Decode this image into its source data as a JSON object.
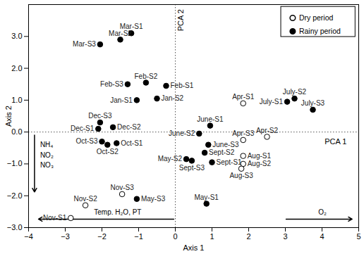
{
  "chart_data": {
    "type": "scatter",
    "x_label": "Axis 1",
    "y_label": "Axis 2",
    "xlim": [
      -4,
      5
    ],
    "ylim": [
      -3,
      4
    ],
    "xticks": [
      -4,
      -3,
      -2,
      -1,
      0,
      1,
      2,
      3,
      4,
      5
    ],
    "yticks": [
      -3,
      -2,
      -1,
      0,
      1,
      2,
      3
    ],
    "legend": "top-right",
    "annotations": [
      "PCA 1",
      "PCA 2",
      "NH₄",
      "NO₂",
      "NO₃",
      "Temp. H₂O, PT",
      "O₂"
    ],
    "series": [
      {
        "name": "Dry period",
        "color": "#000000",
        "marker": "open circle",
        "values": [
          {
            "label": "Apr-S1",
            "x": 1.85,
            "y": 0.9
          },
          {
            "label": "Apr-S2",
            "x": 2.5,
            "y": -0.15
          },
          {
            "label": "Apr-S3",
            "x": 1.85,
            "y": -0.25
          },
          {
            "label": "Aug-S1",
            "x": 1.85,
            "y": -0.75
          },
          {
            "label": "Aug-S2",
            "x": 1.85,
            "y": -1.0
          },
          {
            "label": "Aug-S3",
            "x": 1.8,
            "y": -1.15
          },
          {
            "label": "Nov-S1",
            "x": -2.85,
            "y": -2.7
          },
          {
            "label": "Nov-S2",
            "x": -2.45,
            "y": -2.3
          },
          {
            "label": "Nov-S3",
            "x": -1.45,
            "y": -1.95
          }
        ]
      },
      {
        "name": "Rainy period",
        "color": "#000000",
        "marker": "circle",
        "values": [
          {
            "label": "Mar-S1",
            "x": -1.2,
            "y": 3.1
          },
          {
            "label": "Mar-S2",
            "x": -1.5,
            "y": 2.9
          },
          {
            "label": "Mar-S3",
            "x": -2.05,
            "y": 2.75
          },
          {
            "label": "Feb-S3",
            "x": -1.3,
            "y": 1.5
          },
          {
            "label": "Feb-S2",
            "x": -0.8,
            "y": 1.55
          },
          {
            "label": "Feb-S1",
            "x": -0.25,
            "y": 1.45
          },
          {
            "label": "Jan-S1",
            "x": -1.05,
            "y": 1.0
          },
          {
            "label": "Jan-S2",
            "x": -0.5,
            "y": 1.05
          },
          {
            "label": "Dec-S3",
            "x": -2.05,
            "y": 0.3
          },
          {
            "label": "Dec-S2",
            "x": -1.7,
            "y": 0.15
          },
          {
            "label": "Dec-S1",
            "x": -2.1,
            "y": 0.1
          },
          {
            "label": "Oct-S3",
            "x": -2.0,
            "y": -0.3
          },
          {
            "label": "Oct-S2",
            "x": -1.85,
            "y": -0.4
          },
          {
            "label": "Oct-S1",
            "x": -1.6,
            "y": -0.35
          },
          {
            "label": "May-S3",
            "x": -1.05,
            "y": -2.1
          },
          {
            "label": "May-S1",
            "x": 0.85,
            "y": -2.25
          },
          {
            "label": "May-S2",
            "x": 0.3,
            "y": -0.85
          },
          {
            "label": "Sept-S3",
            "x": 0.45,
            "y": -0.9
          },
          {
            "label": "Sept-S2",
            "x": 0.8,
            "y": -0.65
          },
          {
            "label": "Sept-S1",
            "x": 1.0,
            "y": -0.95
          },
          {
            "label": "June-S1",
            "x": 0.95,
            "y": 0.2
          },
          {
            "label": "June-S2",
            "x": 0.65,
            "y": -0.05
          },
          {
            "label": "June-S3",
            "x": 0.9,
            "y": -0.4
          },
          {
            "label": "July-S1",
            "x": 3.05,
            "y": 0.95
          },
          {
            "label": "July-S2",
            "x": 3.25,
            "y": 1.05
          },
          {
            "label": "July-S3",
            "x": 3.75,
            "y": 0.7
          }
        ]
      }
    ]
  }
}
